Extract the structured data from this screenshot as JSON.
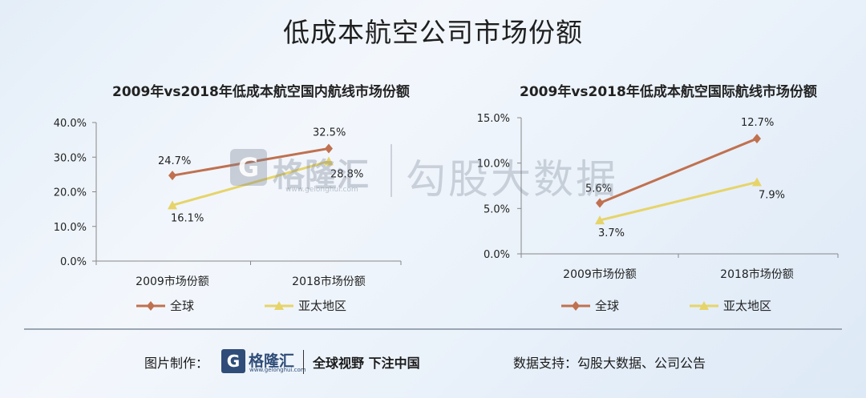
{
  "title": "低成本航空公司市场份额",
  "chart_data": [
    {
      "type": "line",
      "title": "2009年vs2018年低成本航空国内航线市场份额",
      "categories": [
        "2009市场份额",
        "2018市场份额"
      ],
      "series": [
        {
          "name": "全球",
          "values": [
            24.7,
            32.5
          ],
          "labels": [
            "24.7%",
            "32.5%"
          ],
          "color": "#c0714f"
        },
        {
          "name": "亚太地区",
          "values": [
            16.1,
            28.8
          ],
          "labels": [
            "16.1%",
            "28.8%"
          ],
          "color": "#e6d46a"
        }
      ],
      "yticks": [
        "0.0%",
        "10.0%",
        "20.0%",
        "30.0%",
        "40.0%"
      ],
      "ylim": [
        0,
        40
      ],
      "legend_position": "bottom"
    },
    {
      "type": "line",
      "title": "2009年vs2018年低成本航空国际航线市场份额",
      "categories": [
        "2009市场份额",
        "2018市场份额"
      ],
      "series": [
        {
          "name": "全球",
          "values": [
            5.6,
            12.7
          ],
          "labels": [
            "5.6%",
            "12.7%"
          ],
          "color": "#c0714f"
        },
        {
          "name": "亚太地区",
          "values": [
            3.7,
            7.9
          ],
          "labels": [
            "3.7%",
            "7.9%"
          ],
          "color": "#e6d46a"
        }
      ],
      "yticks": [
        "0.0%",
        "5.0%",
        "10.0%",
        "15.0%"
      ],
      "ylim": [
        0,
        15
      ],
      "legend_position": "bottom"
    }
  ],
  "watermark": {
    "logo_glyph": "G",
    "brand": "格隆汇",
    "url": "www.gelonghui.com",
    "text": "勾股大数据"
  },
  "footer": {
    "credit_label": "图片制作：",
    "logo_glyph": "G",
    "brand": "格隆汇",
    "brand_url": "www.gelonghui.com",
    "slogan": "全球视野 下注中国",
    "source_label": "数据支持：勾股大数据、公司公告"
  }
}
